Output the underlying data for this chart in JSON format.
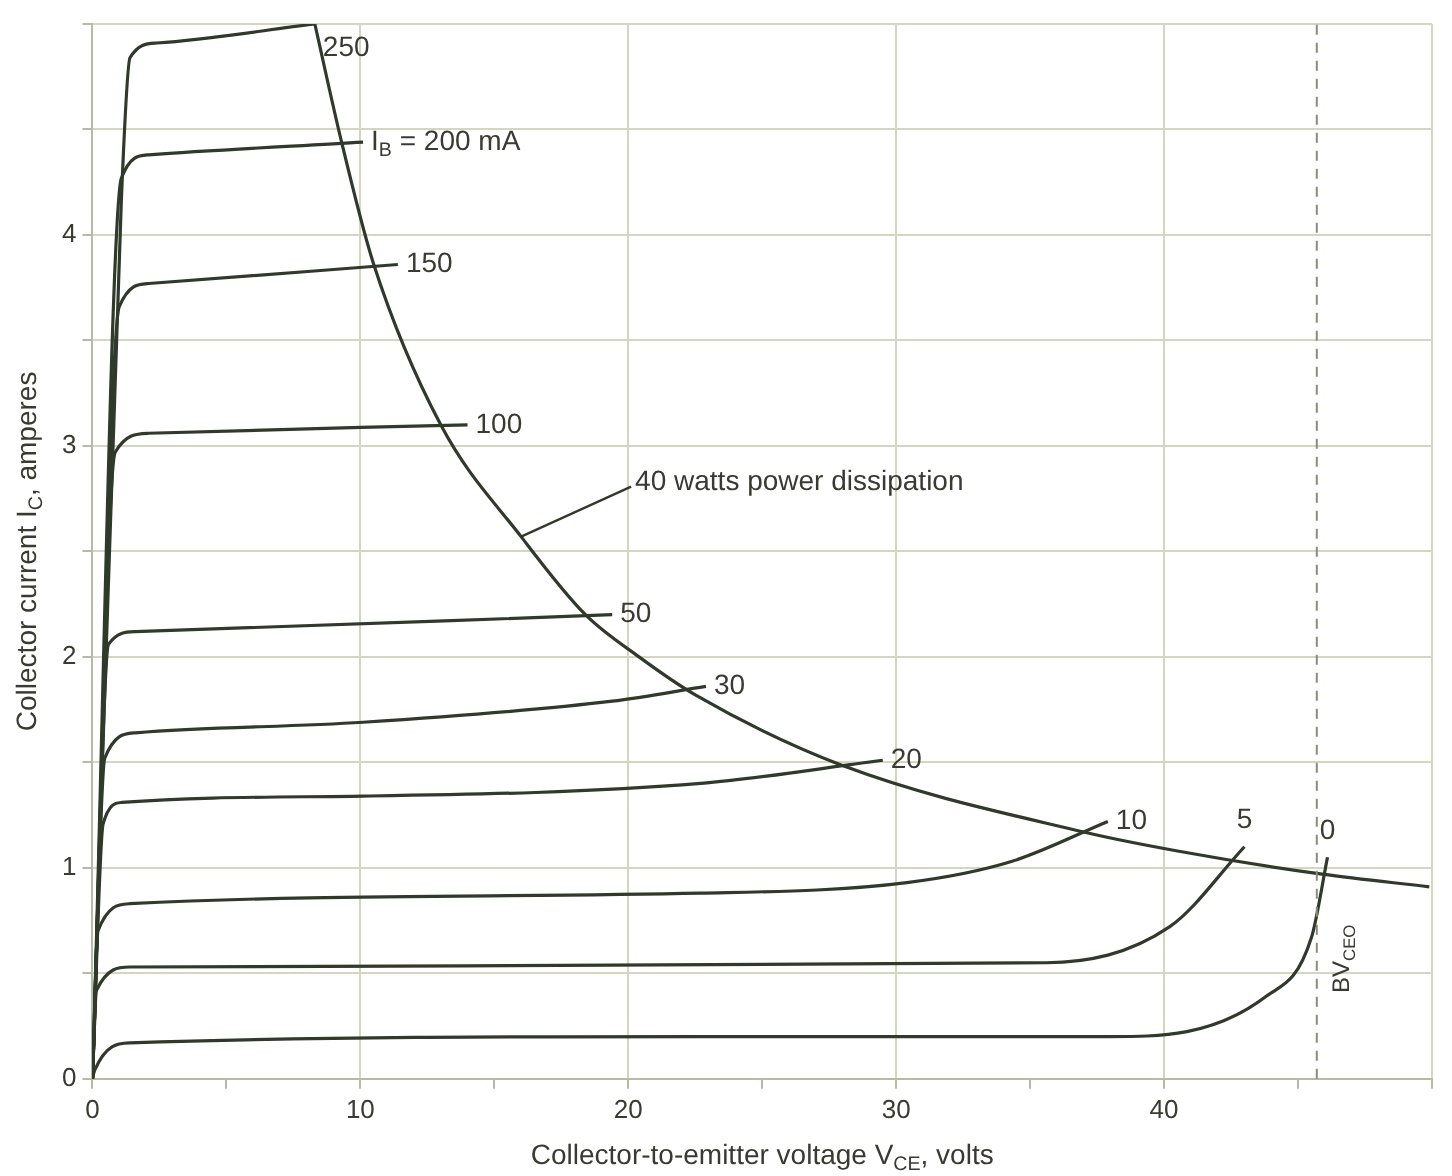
{
  "chart_data": {
    "type": "line",
    "xlabel": "Collector-to-emitter voltage V$_{CE}$, volts",
    "ylabel": "Collector current I$_{C}$, amperes",
    "xlim": [
      0,
      50
    ],
    "ylim": [
      0,
      5
    ],
    "xticks": [
      0,
      {
        "value": 5,
        "label": null
      },
      10,
      {
        "value": 15,
        "label": null
      },
      20,
      {
        "value": 25,
        "label": null
      },
      30,
      {
        "value": 35,
        "label": null
      },
      40,
      {
        "value": 45,
        "label": null
      },
      {
        "value": 50,
        "label": null
      }
    ],
    "yticks": [
      0,
      {
        "value": 0.5,
        "label": null
      },
      1,
      {
        "value": 1.5,
        "label": null
      },
      2,
      {
        "value": 2.5,
        "label": null
      },
      3,
      {
        "value": 3.5,
        "label": null
      },
      4,
      {
        "value": 4.5,
        "label": null
      },
      {
        "value": 5,
        "label": null
      }
    ],
    "grid": true,
    "legend": false,
    "marker": "none",
    "series": [
      {
        "name": "250",
        "color": "#2f3a2a",
        "x": [
          0,
          1.08,
          1.4,
          2.4,
          8.3
        ],
        "values": [
          0,
          4.17,
          4.84,
          4.91,
          5.0
        ]
      },
      {
        "name": "I$_{B}$ = 200 mA",
        "color": "#2f3a2a",
        "x": [
          0,
          1.08,
          2.1,
          10.1
        ],
        "values": [
          0,
          4.27,
          4.38,
          4.44
        ]
      },
      {
        "name": "150",
        "color": "#2f3a2a",
        "x": [
          0,
          1.0,
          2.1,
          11.4
        ],
        "values": [
          0,
          3.66,
          3.77,
          3.86
        ]
      },
      {
        "name": "100",
        "color": "#2f3a2a",
        "x": [
          0,
          0.85,
          2.1,
          14.0
        ],
        "values": [
          0,
          2.97,
          3.06,
          3.1
        ]
      },
      {
        "name": "50",
        "color": "#2f3a2a",
        "x": [
          0,
          0.6,
          1.6,
          19.4
        ],
        "values": [
          0,
          2.06,
          2.12,
          2.2
        ]
      },
      {
        "name": "30",
        "color": "#2f3a2a",
        "x": [
          0,
          0.46,
          1.6,
          10.1,
          19.4,
          22.9
        ],
        "values": [
          0,
          1.52,
          1.64,
          1.69,
          1.79,
          1.86
        ]
      },
      {
        "name": "20",
        "color": "#2f3a2a",
        "x": [
          0,
          0.4,
          1.1,
          10.1,
          22.7,
          29.5
        ],
        "values": [
          0,
          1.21,
          1.31,
          1.34,
          1.4,
          1.51
        ]
      },
      {
        "name": "10",
        "color": "#2f3a2a",
        "x": [
          0,
          0.2,
          1.4,
          22.7,
          30.4,
          34.3,
          37.9
        ],
        "values": [
          0,
          0.7,
          0.83,
          0.88,
          0.93,
          1.03,
          1.22
        ]
      },
      {
        "name": "5",
        "color": "#2f3a2a",
        "x": [
          0,
          0.15,
          1.4,
          35.6,
          40.2,
          43.0
        ],
        "values": [
          0,
          0.42,
          0.53,
          0.55,
          0.72,
          1.1
        ]
      },
      {
        "name": "0",
        "color": "#2f3a2a",
        "x": [
          0,
          0.08,
          1.4,
          22.7,
          37.9,
          43.8,
          45.5,
          46.1
        ],
        "values": [
          0,
          0.04,
          0.17,
          0.2,
          0.2,
          0.39,
          0.67,
          1.05
        ]
      },
      {
        "color": "#2f3a2a",
        "x": [
          8.3,
          9.3,
          10.5,
          13.0,
          16.0,
          18.4,
          20.4,
          22.5,
          28.1,
          37.0,
          40.5,
          45.9,
          49.9
        ],
        "values": [
          5.0,
          4.44,
          3.86,
          3.1,
          2.57,
          2.2,
          2.0,
          1.82,
          1.48,
          1.17,
          1.08,
          0.97,
          0.91
        ]
      }
    ],
    "annotations": [
      {
        "text": "40 watts power dissipation",
        "x": 16.0,
        "y": 2.57
      }
    ],
    "ref_lines": [
      {
        "axis": "x",
        "value": 45.7,
        "label": "BV$_{CEO}$",
        "line_style": "dashed"
      }
    ]
  }
}
